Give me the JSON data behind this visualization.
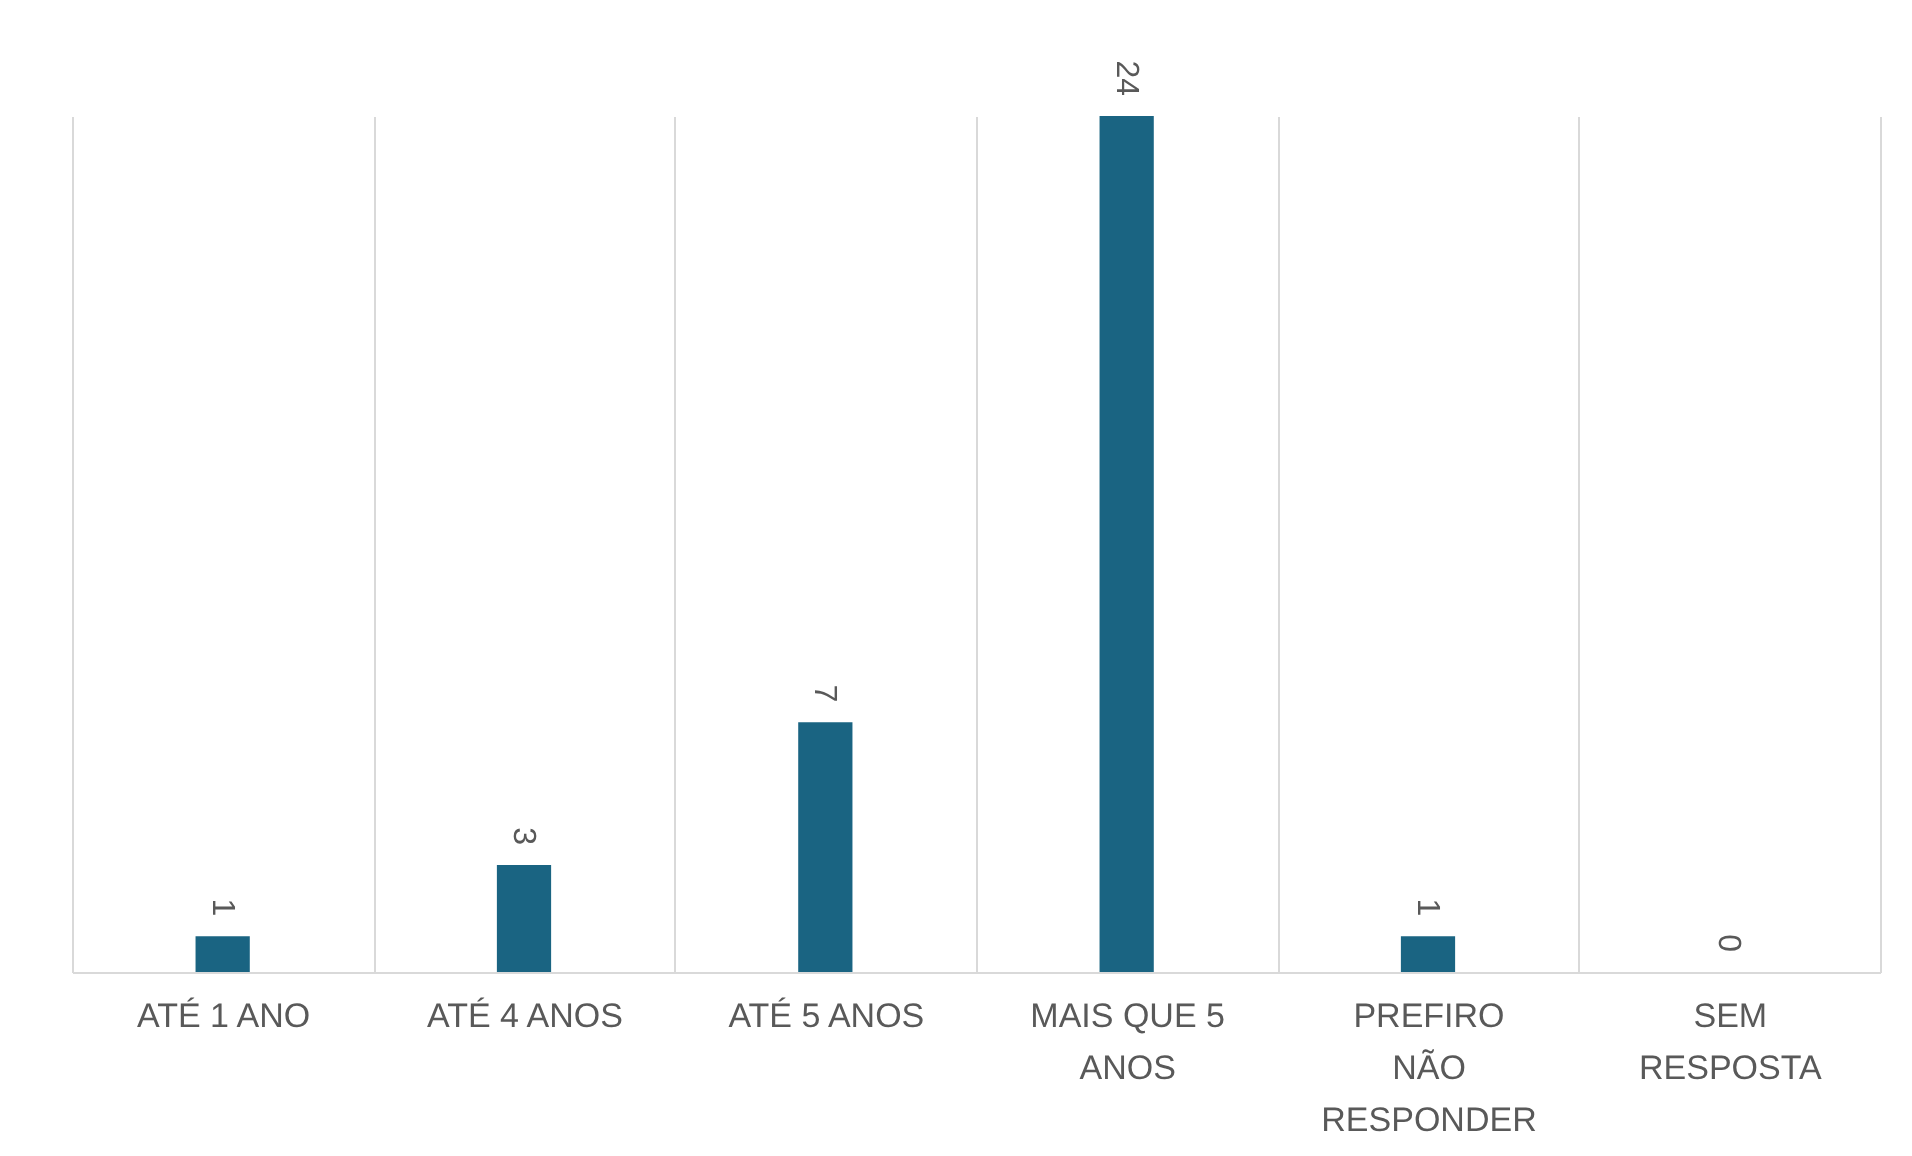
{
  "chart_data": {
    "type": "bar",
    "categories": [
      "ATÉ 1 ANO",
      "ATÉ 4 ANOS",
      "ATÉ 5 ANOS",
      "MAIS QUE 5 ANOS",
      "PREFIRO NÃO RESPONDER",
      "SEM RESPOSTA"
    ],
    "values": [
      1,
      3,
      7,
      24,
      1,
      0
    ],
    "color": "#1a6482",
    "data_labels": true,
    "grid": "x"
  }
}
